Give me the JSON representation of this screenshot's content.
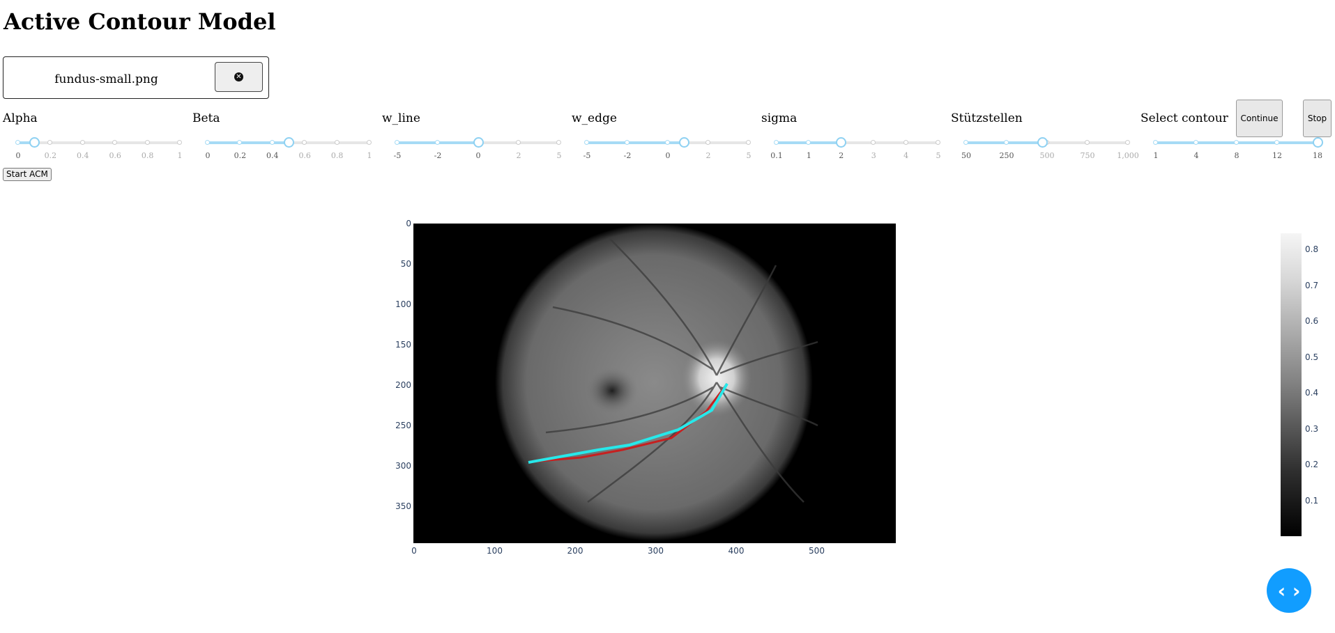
{
  "title": "Active Contour Model",
  "upload": {
    "filename": "fundus-small.png",
    "remove_icon": "close-circle-icon"
  },
  "sliders": [
    {
      "label": "Alpha",
      "ticks": [
        "0",
        "0.2",
        "0.4",
        "0.6",
        "0.8",
        "1"
      ],
      "value_fraction": 0.1
    },
    {
      "label": "Beta",
      "ticks": [
        "0",
        "0.2",
        "0.4",
        "0.6",
        "0.8",
        "1"
      ],
      "value_fraction": 0.5
    },
    {
      "label": "w_line",
      "ticks": [
        "-5",
        "-2",
        "0",
        "2",
        "5"
      ],
      "value_fraction": 0.5
    },
    {
      "label": "w_edge",
      "ticks": [
        "-5",
        "-2",
        "0",
        "2",
        "5"
      ],
      "value_fraction": 0.6
    },
    {
      "label": "sigma",
      "ticks": [
        "0.1",
        "1",
        "2",
        "3",
        "4",
        "5"
      ],
      "value_fraction": 0.4
    },
    {
      "label": "Stützstellen",
      "ticks": [
        "50",
        "250",
        "500",
        "750",
        "1,000"
      ],
      "value_fraction": 0.474
    },
    {
      "label": "Select contour",
      "ticks": [
        "1",
        "4",
        "8",
        "12",
        "18"
      ],
      "value_fraction": 1.0
    }
  ],
  "buttons": {
    "continue": "Continue",
    "stop": "Stop",
    "start": "Start ACM"
  },
  "plot": {
    "y_ticks": [
      "0",
      "50",
      "100",
      "150",
      "200",
      "250",
      "300",
      "350"
    ],
    "x_ticks": [
      "0",
      "100",
      "200",
      "300",
      "400",
      "500"
    ],
    "colorbar_ticks": [
      "0.8",
      "0.7",
      "0.6",
      "0.5",
      "0.4",
      "0.3",
      "0.2",
      "0.1"
    ],
    "colors": {
      "contour_active": "#27e8ea",
      "contour_initial": "#c62020"
    }
  },
  "code_toggle_icon": "code-brackets-icon"
}
